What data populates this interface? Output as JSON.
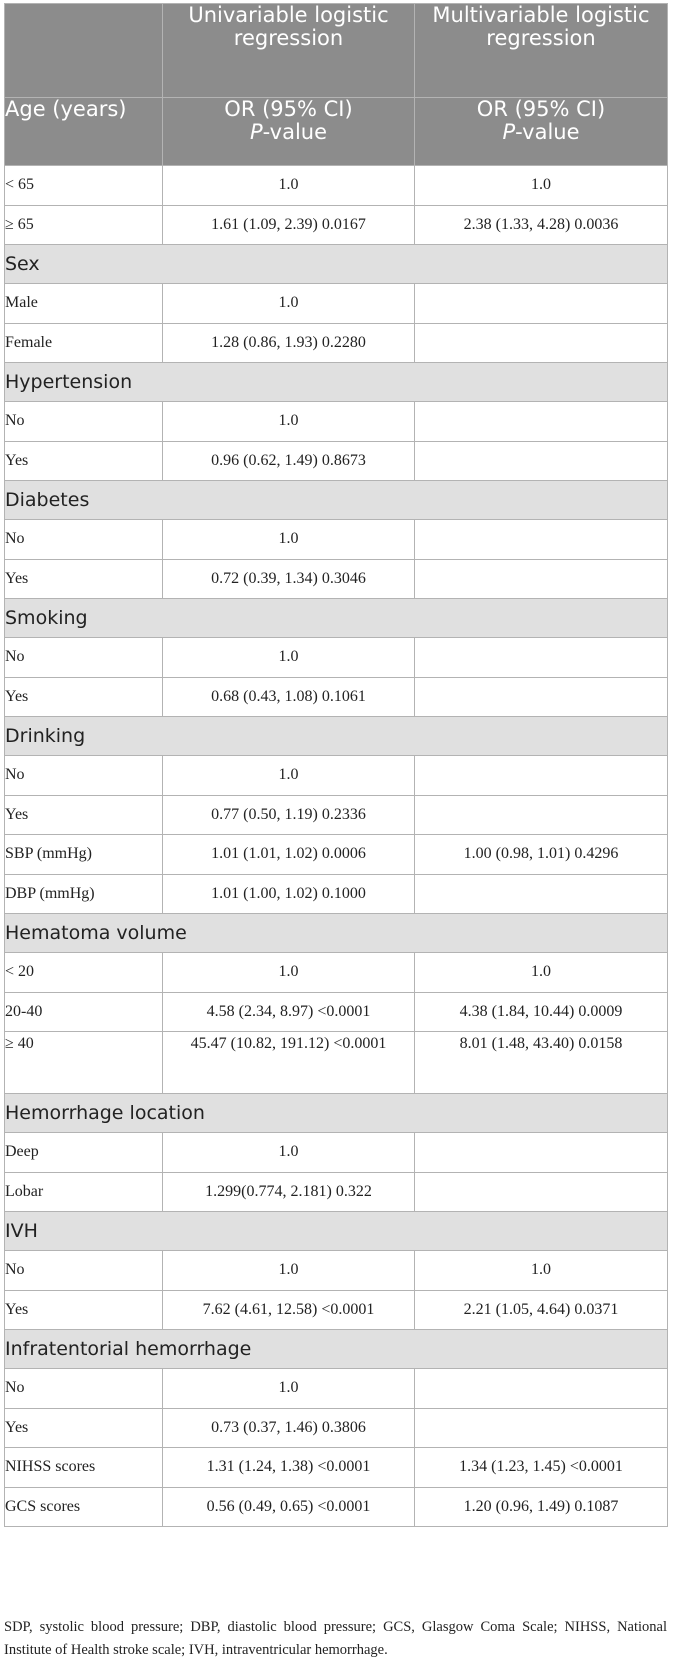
{
  "header": {
    "col2_title": "Univariable logistic regression",
    "col3_title": "Multivariable logistic regression",
    "row2_label": "Age (years)",
    "col2_sub1": "OR (95% CI)",
    "col2_sub2_italic": "P",
    "col2_sub2_rest": "-value",
    "col3_sub1": "OR (95% CI)",
    "col3_sub2_italic": "P",
    "col3_sub2_rest": "-value"
  },
  "rows": [
    {
      "type": "data",
      "label": "< 65",
      "uni": "1.0",
      "multi": "1.0"
    },
    {
      "type": "data",
      "label": "≥ 65",
      "uni": "1.61 (1.09, 2.39) 0.0167",
      "multi": "2.38 (1.33, 4.28) 0.0036"
    },
    {
      "type": "section",
      "label": "Sex"
    },
    {
      "type": "data",
      "label": "Male",
      "uni": "1.0",
      "multi": ""
    },
    {
      "type": "data",
      "label": "Female",
      "uni": "1.28 (0.86, 1.93) 0.2280",
      "multi": ""
    },
    {
      "type": "section",
      "label": "Hypertension"
    },
    {
      "type": "data",
      "label": "No",
      "uni": "1.0",
      "multi": ""
    },
    {
      "type": "data",
      "label": "Yes",
      "uni": "0.96 (0.62, 1.49) 0.8673",
      "multi": ""
    },
    {
      "type": "section",
      "label": "Diabetes"
    },
    {
      "type": "data",
      "label": "No",
      "uni": "1.0",
      "multi": ""
    },
    {
      "type": "data",
      "label": "Yes",
      "uni": "0.72 (0.39, 1.34) 0.3046",
      "multi": ""
    },
    {
      "type": "section",
      "label": "Smoking"
    },
    {
      "type": "data",
      "label": "No",
      "uni": "1.0",
      "multi": ""
    },
    {
      "type": "data",
      "label": "Yes",
      "uni": "0.68 (0.43, 1.08) 0.1061",
      "multi": ""
    },
    {
      "type": "section",
      "label": "Drinking"
    },
    {
      "type": "data",
      "label": "No",
      "uni": "1.0",
      "multi": ""
    },
    {
      "type": "data",
      "label": "Yes",
      "uni": "0.77 (0.50, 1.19) 0.2336",
      "multi": ""
    },
    {
      "type": "data",
      "label": "SBP (mmHg)",
      "uni": "1.01 (1.01, 1.02) 0.0006",
      "multi": "1.00 (0.98, 1.01) 0.4296"
    },
    {
      "type": "data",
      "label": "DBP (mmHg)",
      "uni": "1.01 (1.00, 1.02) 0.1000",
      "multi": ""
    },
    {
      "type": "section",
      "label": "Hematoma volume"
    },
    {
      "type": "data",
      "label": "< 20",
      "uni": "1.0",
      "multi": "1.0"
    },
    {
      "type": "data",
      "label": "20-40",
      "uni": "4.58 (2.34, 8.97) <0.0001",
      "multi": "4.38 (1.84, 10.44) 0.0009"
    },
    {
      "type": "data",
      "tall": true,
      "label": "≥ 40",
      "uni": "45.47 (10.82, 191.12) <0.0001",
      "multi": "8.01 (1.48, 43.40) 0.0158"
    },
    {
      "type": "section",
      "label": "Hemorrhage location"
    },
    {
      "type": "data",
      "label": "Deep",
      "uni": "1.0",
      "multi": ""
    },
    {
      "type": "data",
      "label": "Lobar",
      "uni": "1.299(0.774, 2.181) 0.322",
      "multi": ""
    },
    {
      "type": "section",
      "label": "IVH"
    },
    {
      "type": "data",
      "label": "No",
      "uni": "1.0",
      "multi": "1.0"
    },
    {
      "type": "data",
      "label": "Yes",
      "uni": "7.62 (4.61, 12.58) <0.0001",
      "multi": "2.21 (1.05, 4.64) 0.0371"
    },
    {
      "type": "section",
      "label": "Infratentorial hemorrhage"
    },
    {
      "type": "data",
      "label": "No",
      "uni": "1.0",
      "multi": ""
    },
    {
      "type": "data",
      "label": "Yes",
      "uni": "0.73 (0.37, 1.46) 0.3806",
      "multi": ""
    },
    {
      "type": "data",
      "label": "NIHSS scores",
      "uni": "1.31 (1.24, 1.38) <0.0001",
      "multi": "1.34 (1.23, 1.45) <0.0001"
    },
    {
      "type": "data",
      "label": "GCS scores",
      "uni": "0.56 (0.49, 0.65) <0.0001",
      "multi": "1.20 (0.96, 1.49) 0.1087"
    }
  ],
  "footnote": "SDP, systolic blood pressure; DBP, diastolic blood pressure; GCS, Glasgow Coma Scale; NIHSS, National Institute of Health stroke scale; IVH, intraventricular hemorrhage.",
  "colors": {
    "header_bg": "#8c8c8c",
    "section_bg": "#e0e0e0",
    "border": "#b3b3b3"
  }
}
